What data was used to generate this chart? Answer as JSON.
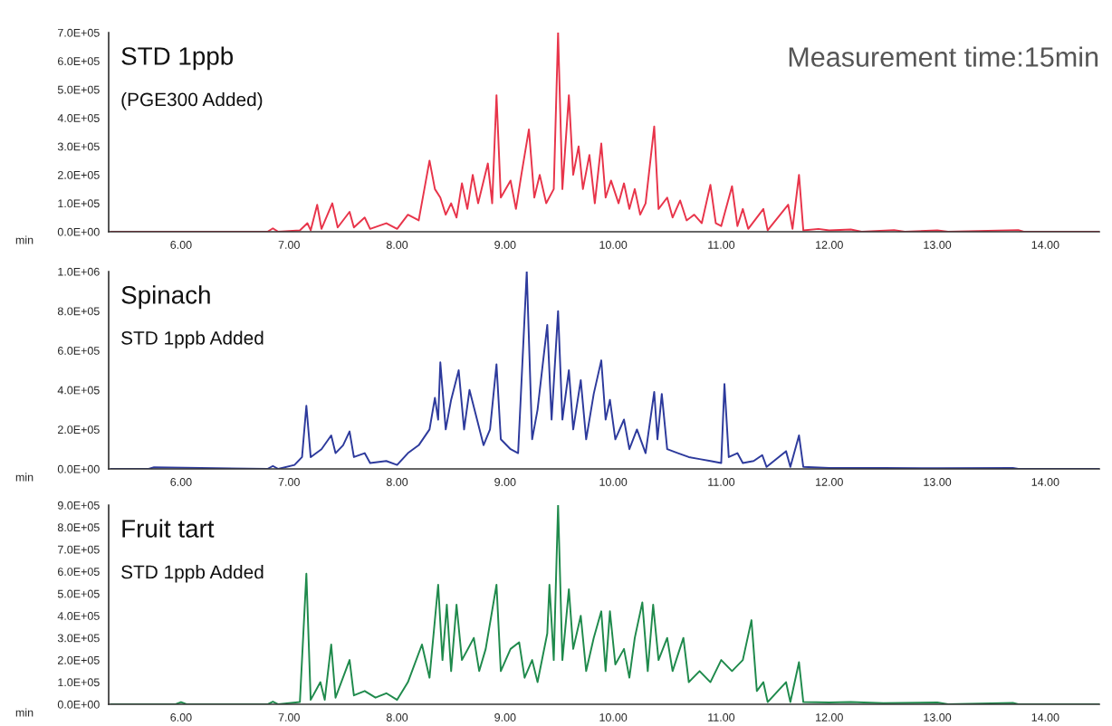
{
  "chart_data": [
    {
      "type": "line",
      "title": "Measurement time:15min",
      "xlabel": "min",
      "annotations": [
        "STD 1ppb",
        "(PGE300 Added)"
      ],
      "grid": false,
      "legend": false,
      "marker": "none",
      "line_style": "solid",
      "xlim": [
        5.33,
        14.5
      ],
      "xticks": [
        {
          "value": 6,
          "label": "6.00"
        },
        {
          "value": 7,
          "label": "7.00"
        },
        {
          "value": 8,
          "label": "8.00"
        },
        {
          "value": 9,
          "label": "9.00"
        },
        {
          "value": 10,
          "label": "10.00"
        },
        {
          "value": 11,
          "label": "11.00"
        },
        {
          "value": 12,
          "label": "12.00"
        },
        {
          "value": 13,
          "label": "13.00"
        },
        {
          "value": 14,
          "label": "14.00"
        }
      ],
      "ylim": [
        0,
        700000
      ],
      "yticks": [
        {
          "value": 0,
          "label": "0.0E+00"
        },
        {
          "value": 100000,
          "label": "1.0E+05"
        },
        {
          "value": 200000,
          "label": "2.0E+05"
        },
        {
          "value": 300000,
          "label": "3.0E+05"
        },
        {
          "value": 400000,
          "label": "4.0E+05"
        },
        {
          "value": 500000,
          "label": "5.0E+05"
        },
        {
          "value": 600000,
          "label": "6.0E+05"
        },
        {
          "value": 700000,
          "label": "7.0E+05"
        }
      ],
      "series": [
        {
          "color": "#e8344a",
          "x": [
            5.35,
            6.8,
            6.85,
            6.9,
            7.1,
            7.17,
            7.2,
            7.26,
            7.3,
            7.4,
            7.45,
            7.56,
            7.6,
            7.7,
            7.75,
            7.9,
            8.0,
            8.1,
            8.2,
            8.3,
            8.35,
            8.4,
            8.45,
            8.5,
            8.55,
            8.6,
            8.65,
            8.7,
            8.75,
            8.84,
            8.88,
            8.92,
            8.96,
            9.05,
            9.1,
            9.15,
            9.22,
            9.27,
            9.32,
            9.38,
            9.45,
            9.49,
            9.53,
            9.59,
            9.63,
            9.68,
            9.72,
            9.78,
            9.83,
            9.89,
            9.93,
            9.98,
            10.05,
            10.1,
            10.15,
            10.2,
            10.25,
            10.3,
            10.38,
            10.42,
            10.5,
            10.55,
            10.62,
            10.68,
            10.75,
            10.82,
            10.9,
            10.95,
            11.0,
            11.1,
            11.15,
            11.2,
            11.25,
            11.39,
            11.43,
            11.62,
            11.66,
            11.72,
            11.76,
            11.9,
            12.0,
            12.2,
            12.3,
            12.6,
            12.7,
            13.0,
            13.1,
            13.75,
            13.8,
            14.5
          ],
          "values": [
            0,
            0,
            12000,
            0,
            5000,
            30000,
            5000,
            95000,
            10000,
            100000,
            15000,
            70000,
            15000,
            50000,
            10000,
            30000,
            10000,
            60000,
            40000,
            250000,
            150000,
            120000,
            60000,
            100000,
            50000,
            170000,
            80000,
            200000,
            100000,
            240000,
            100000,
            480000,
            120000,
            180000,
            80000,
            200000,
            360000,
            120000,
            200000,
            100000,
            150000,
            700000,
            150000,
            480000,
            200000,
            300000,
            150000,
            270000,
            100000,
            310000,
            120000,
            180000,
            100000,
            170000,
            80000,
            150000,
            60000,
            100000,
            370000,
            80000,
            120000,
            50000,
            110000,
            40000,
            60000,
            30000,
            165000,
            30000,
            20000,
            160000,
            20000,
            80000,
            10000,
            80000,
            5000,
            95000,
            10000,
            200000,
            5000,
            10000,
            5000,
            8000,
            0,
            6000,
            0,
            5000,
            0,
            6000,
            0,
            0
          ]
        }
      ]
    },
    {
      "type": "line",
      "xlabel": "min",
      "annotations": [
        "Spinach",
        "STD 1ppb Added"
      ],
      "grid": false,
      "legend": false,
      "marker": "none",
      "line_style": "solid",
      "xlim": [
        5.33,
        14.5
      ],
      "xticks": [
        {
          "value": 6,
          "label": "6.00"
        },
        {
          "value": 7,
          "label": "7.00"
        },
        {
          "value": 8,
          "label": "8.00"
        },
        {
          "value": 9,
          "label": "9.00"
        },
        {
          "value": 10,
          "label": "10.00"
        },
        {
          "value": 11,
          "label": "11.00"
        },
        {
          "value": 12,
          "label": "12.00"
        },
        {
          "value": 13,
          "label": "13.00"
        },
        {
          "value": 14,
          "label": "14.00"
        }
      ],
      "ylim": [
        0,
        1000000
      ],
      "yticks": [
        {
          "value": 0,
          "label": "0.0E+00"
        },
        {
          "value": 200000,
          "label": "2.0E+05"
        },
        {
          "value": 400000,
          "label": "4.0E+05"
        },
        {
          "value": 600000,
          "label": "6.0E+05"
        },
        {
          "value": 800000,
          "label": "8.0E+05"
        },
        {
          "value": 1000000,
          "label": "1.0E+06"
        }
      ],
      "series": [
        {
          "color": "#2d3a9c",
          "x": [
            5.35,
            5.7,
            5.75,
            6.8,
            6.85,
            6.9,
            7.05,
            7.12,
            7.16,
            7.2,
            7.3,
            7.39,
            7.43,
            7.5,
            7.56,
            7.6,
            7.7,
            7.75,
            7.9,
            8.0,
            8.1,
            8.2,
            8.3,
            8.35,
            8.38,
            8.4,
            8.45,
            8.5,
            8.57,
            8.62,
            8.67,
            8.74,
            8.8,
            8.86,
            8.92,
            8.96,
            9.05,
            9.12,
            9.2,
            9.25,
            9.3,
            9.39,
            9.43,
            9.49,
            9.53,
            9.59,
            9.63,
            9.7,
            9.75,
            9.82,
            9.89,
            9.93,
            9.97,
            10.02,
            10.1,
            10.15,
            10.22,
            10.3,
            10.38,
            10.41,
            10.45,
            10.5,
            10.6,
            10.7,
            10.8,
            10.9,
            11.0,
            11.03,
            11.07,
            11.15,
            11.2,
            11.3,
            11.38,
            11.42,
            11.6,
            11.64,
            11.72,
            11.76,
            12.0,
            12.5,
            13.0,
            13.7,
            13.75,
            14.5
          ],
          "values": [
            0,
            0,
            8000,
            0,
            15000,
            0,
            20000,
            60000,
            320000,
            60000,
            100000,
            170000,
            80000,
            120000,
            190000,
            60000,
            80000,
            30000,
            40000,
            20000,
            80000,
            120000,
            200000,
            360000,
            250000,
            540000,
            200000,
            350000,
            500000,
            200000,
            400000,
            250000,
            120000,
            200000,
            530000,
            150000,
            100000,
            80000,
            1000000,
            150000,
            300000,
            730000,
            250000,
            800000,
            250000,
            500000,
            200000,
            450000,
            150000,
            380000,
            550000,
            250000,
            350000,
            150000,
            250000,
            100000,
            200000,
            80000,
            390000,
            150000,
            380000,
            100000,
            80000,
            60000,
            50000,
            40000,
            30000,
            430000,
            60000,
            80000,
            30000,
            40000,
            70000,
            10000,
            90000,
            10000,
            170000,
            10000,
            5000,
            5000,
            3000,
            5000,
            0,
            0
          ]
        }
      ]
    },
    {
      "type": "line",
      "xlabel": "min",
      "annotations": [
        "Fruit tart",
        "STD 1ppb Added"
      ],
      "grid": false,
      "legend": false,
      "marker": "none",
      "line_style": "solid",
      "xlim": [
        5.33,
        14.5
      ],
      "xticks": [
        {
          "value": 6,
          "label": "6.00"
        },
        {
          "value": 7,
          "label": "7.00"
        },
        {
          "value": 8,
          "label": "8.00"
        },
        {
          "value": 9,
          "label": "9.00"
        },
        {
          "value": 10,
          "label": "10.00"
        },
        {
          "value": 11,
          "label": "11.00"
        },
        {
          "value": 12,
          "label": "12.00"
        },
        {
          "value": 13,
          "label": "13.00"
        },
        {
          "value": 14,
          "label": "14.00"
        }
      ],
      "ylim": [
        0,
        900000
      ],
      "yticks": [
        {
          "value": 0,
          "label": "0.0E+00"
        },
        {
          "value": 100000,
          "label": "1.0E+05"
        },
        {
          "value": 200000,
          "label": "2.0E+05"
        },
        {
          "value": 300000,
          "label": "3.0E+05"
        },
        {
          "value": 400000,
          "label": "4.0E+05"
        },
        {
          "value": 500000,
          "label": "5.0E+05"
        },
        {
          "value": 600000,
          "label": "6.0E+05"
        },
        {
          "value": 700000,
          "label": "7.0E+05"
        },
        {
          "value": 800000,
          "label": "8.0E+05"
        },
        {
          "value": 900000,
          "label": "9.0E+05"
        }
      ],
      "series": [
        {
          "color": "#1f8a4c",
          "x": [
            5.35,
            5.95,
            6.0,
            6.05,
            6.8,
            6.85,
            6.9,
            7.1,
            7.16,
            7.2,
            7.29,
            7.33,
            7.39,
            7.43,
            7.56,
            7.6,
            7.7,
            7.8,
            7.9,
            8.0,
            8.1,
            8.23,
            8.3,
            8.38,
            8.42,
            8.46,
            8.5,
            8.55,
            8.6,
            8.71,
            8.76,
            8.82,
            8.92,
            8.96,
            9.05,
            9.13,
            9.18,
            9.25,
            9.3,
            9.39,
            9.41,
            9.45,
            9.49,
            9.53,
            9.59,
            9.63,
            9.7,
            9.75,
            9.82,
            9.89,
            9.93,
            9.97,
            10.02,
            10.1,
            10.15,
            10.2,
            10.27,
            10.32,
            10.37,
            10.42,
            10.5,
            10.55,
            10.65,
            10.7,
            10.8,
            10.9,
            11.0,
            11.1,
            11.2,
            11.28,
            11.33,
            11.39,
            11.43,
            11.6,
            11.64,
            11.72,
            11.76,
            12.0,
            12.2,
            12.5,
            13.0,
            13.1,
            13.7,
            13.75,
            14.5
          ],
          "values": [
            0,
            0,
            10000,
            0,
            0,
            12000,
            0,
            10000,
            590000,
            20000,
            100000,
            20000,
            270000,
            30000,
            200000,
            40000,
            60000,
            30000,
            50000,
            20000,
            100000,
            270000,
            120000,
            540000,
            200000,
            450000,
            150000,
            450000,
            200000,
            300000,
            150000,
            250000,
            540000,
            150000,
            250000,
            280000,
            120000,
            200000,
            100000,
            320000,
            540000,
            200000,
            900000,
            200000,
            520000,
            250000,
            400000,
            150000,
            300000,
            420000,
            150000,
            420000,
            180000,
            250000,
            120000,
            300000,
            460000,
            150000,
            450000,
            200000,
            300000,
            150000,
            300000,
            100000,
            150000,
            100000,
            200000,
            150000,
            200000,
            380000,
            60000,
            100000,
            10000,
            100000,
            10000,
            190000,
            10000,
            8000,
            10000,
            5000,
            8000,
            0,
            6000,
            0,
            0
          ]
        }
      ]
    }
  ]
}
